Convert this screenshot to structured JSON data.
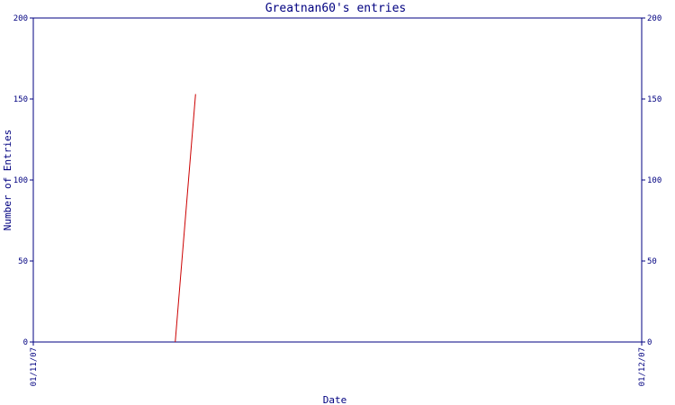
{
  "colors": {
    "axis": "#000080",
    "series": "#cc0000",
    "background": "#ffffff"
  },
  "chart_data": {
    "type": "line",
    "title": "Greatnan60's entries",
    "xlabel": "Date",
    "ylabel": "Number of Entries",
    "ylim": [
      0,
      200
    ],
    "yticks": [
      "0",
      "50",
      "100",
      "150",
      "200"
    ],
    "xlim": [
      "01/11/07",
      "01/12/07"
    ],
    "xticks": [
      "01/11/07",
      "01/12/07"
    ],
    "grid": false,
    "legend": "none",
    "series": [
      {
        "x": [
          "2007-11-08",
          "2007-11-09"
        ],
        "values": [
          0,
          153
        ]
      }
    ]
  }
}
